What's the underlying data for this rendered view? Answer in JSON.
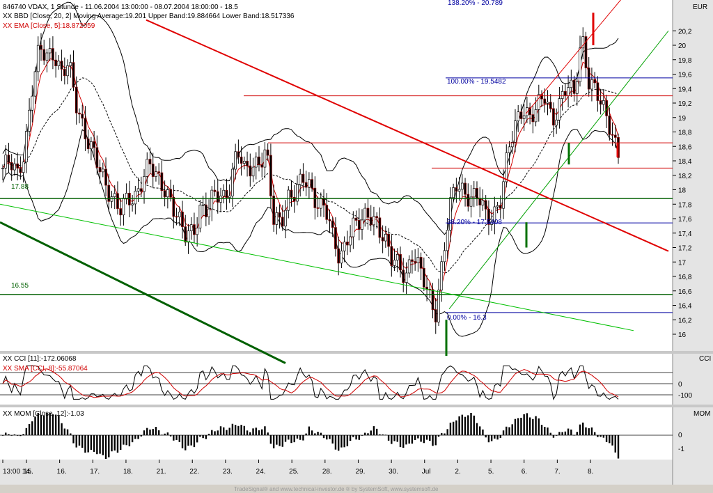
{
  "header": {
    "line1": "846740  VDAX, 1 Stunde - 11.06.2004 13:00:00 - 08.07.2004 18:00:00 - 18.5",
    "line2": "XX BBD [Close, 20, 2] Moving Average:19.201 Upper Band:19.884664 Lower Band:18.517336",
    "line3": "XX EMA [Close, 5]:18.872059"
  },
  "currency": "EUR",
  "fib_labels": {
    "top": "138.20% - 20.789",
    "f100": "100.00% - 19.5482",
    "f382": "38.20% - 17.5408",
    "f0": "0.00% - 16.3"
  },
  "levels": {
    "a": "17.88",
    "b": "16.55"
  },
  "cci": {
    "title1": "XX CCI [11]:-172.06068",
    "title2": "XX SMA [CCI, 8]:-55.87064",
    "name": "CCI",
    "ticks": [
      "0",
      "-100"
    ]
  },
  "mom": {
    "title": "XX MOM [Close, 12]:-1.03",
    "name": "MOM",
    "ticks": [
      "0",
      "-1"
    ]
  },
  "footer": "TradeSignal® and www.technical-investor.de ® by SystemSoft, www.systemsoft.de",
  "chart_data": {
    "type": "candlestick",
    "symbol": "VDAX",
    "interval": "1 Stunde",
    "period": [
      "11.06.2004 13:00",
      "08.07.2004 18:00"
    ],
    "y_axis_ticks": [
      "20,2",
      "20",
      "19,8",
      "19,6",
      "19,4",
      "19,2",
      "19",
      "18,8",
      "18,6",
      "18,4",
      "18,2",
      "18",
      "17,8",
      "17,6",
      "17,4",
      "17,2",
      "17",
      "16,8",
      "16,6",
      "16,4",
      "16,2",
      "16"
    ],
    "ylim": [
      15.8,
      20.4
    ],
    "x_axis_labels": [
      "13:00 14.",
      "15.",
      "16.",
      "17.",
      "18.",
      "21.",
      "22.",
      "23.",
      "24.",
      "25.",
      "28.",
      "29.",
      "30.",
      "Jul",
      "2.",
      "5.",
      "6.",
      "7.",
      "8."
    ],
    "close_path": [
      18.3,
      18.35,
      18.2,
      18.6,
      19.4,
      19.9,
      19.85,
      19.95,
      19.6,
      19.7,
      19.2,
      18.9,
      18.6,
      18.3,
      18.05,
      17.95,
      17.75,
      17.8,
      17.85,
      18.2,
      18.4,
      18.1,
      18.0,
      17.9,
      17.6,
      17.3,
      17.4,
      17.8,
      17.75,
      17.9,
      17.85,
      18.1,
      18.6,
      18.2,
      18.3,
      18.45,
      18.55,
      17.5,
      17.55,
      17.95,
      18.0,
      18.1,
      18.0,
      17.85,
      17.8,
      17.3,
      17.0,
      17.4,
      17.55,
      17.5,
      17.65,
      17.6,
      17.35,
      17.0,
      16.95,
      16.85,
      17.15,
      16.8,
      16.6,
      16.3,
      17.0,
      17.7,
      18.1,
      18.0,
      17.9,
      17.85,
      17.6,
      17.7,
      17.9,
      18.5,
      18.9,
      19.2,
      19.0,
      19.1,
      19.3,
      19.0,
      19.2,
      19.4,
      19.3,
      20.2,
      19.5,
      19.3,
      19.1,
      18.9,
      18.5
    ],
    "bollinger": {
      "period": 20,
      "stddev": 2,
      "moving_average": 19.201,
      "upper_band": 19.884664,
      "lower_band": 18.517336
    },
    "ema": {
      "period": 5,
      "value": 18.872059
    },
    "horizontal_levels": [
      17.88,
      16.55
    ],
    "fibonacci": [
      {
        "label": "138.20%",
        "value": 20.789
      },
      {
        "label": "100.00%",
        "value": 19.5482
      },
      {
        "label": "38.20%",
        "value": 17.5408
      },
      {
        "label": "0.00%",
        "value": 16.3
      }
    ],
    "panels": [
      {
        "name": "CCI",
        "period": 11,
        "value": -172.06068,
        "sma_period": 8,
        "sma_value": -55.87064
      },
      {
        "name": "MOM",
        "period": 12,
        "value": -1.03
      }
    ]
  }
}
